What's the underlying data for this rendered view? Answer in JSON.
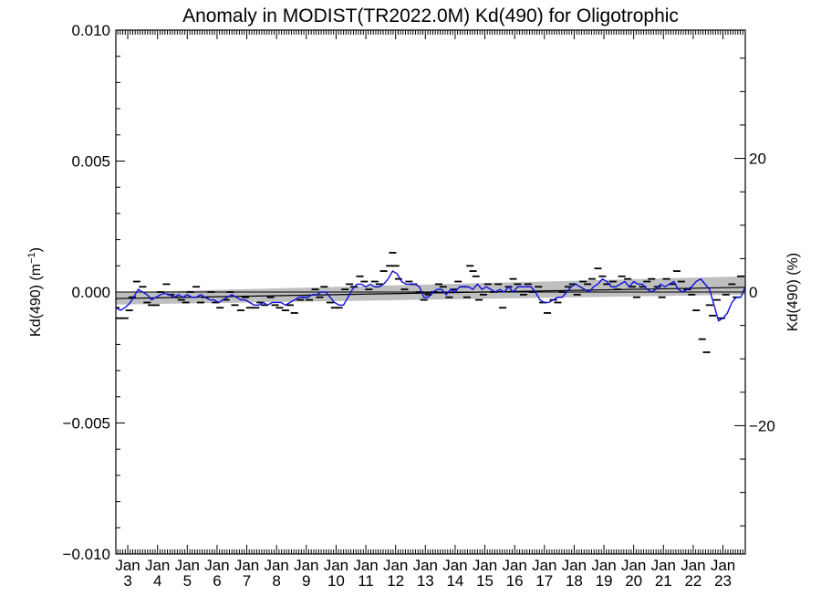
{
  "chart_data": {
    "type": "line",
    "title": "Anomaly in MODIST(TR2022.0M) Kd(490) for Oligotrophic",
    "ylabel_left": "Kd(490) (m",
    "ylabel_left_sup": "−1",
    "ylabel_left_close": ")",
    "ylabel_right": "Kd(490) (%)",
    "ylim": [
      -0.01,
      0.01
    ],
    "yticks_left": [
      {
        "value": 0.01,
        "label": "0.010"
      },
      {
        "value": 0.005,
        "label": "0.005"
      },
      {
        "value": 0.0,
        "label": "0.000"
      },
      {
        "value": -0.005,
        "label": "−0.005"
      },
      {
        "value": -0.01,
        "label": "−0.010"
      }
    ],
    "right_axis": {
      "ylim": [
        -39.2,
        39.2
      ],
      "ticks": [
        {
          "value": 20,
          "label": "20"
        },
        {
          "value": 0,
          "label": "0"
        },
        {
          "value": -20,
          "label": "−20"
        }
      ]
    },
    "xlim": [
      2002.6,
      2023.75
    ],
    "x_month_label": "Jan",
    "x_years": [
      {
        "value": 2003,
        "label": "3"
      },
      {
        "value": 2004,
        "label": "4"
      },
      {
        "value": 2005,
        "label": "5"
      },
      {
        "value": 2006,
        "label": "6"
      },
      {
        "value": 2007,
        "label": "7"
      },
      {
        "value": 2008,
        "label": "8"
      },
      {
        "value": 2009,
        "label": "9"
      },
      {
        "value": 2010,
        "label": "10"
      },
      {
        "value": 2011,
        "label": "11"
      },
      {
        "value": 2012,
        "label": "12"
      },
      {
        "value": 2013,
        "label": "13"
      },
      {
        "value": 2014,
        "label": "14"
      },
      {
        "value": 2015,
        "label": "15"
      },
      {
        "value": 2016,
        "label": "16"
      },
      {
        "value": 2017,
        "label": "17"
      },
      {
        "value": 2018,
        "label": "18"
      },
      {
        "value": 2019,
        "label": "19"
      },
      {
        "value": 2020,
        "label": "20"
      },
      {
        "value": 2021,
        "label": "21"
      },
      {
        "value": 2022,
        "label": "22"
      },
      {
        "value": 2023,
        "label": "23"
      }
    ],
    "trend": {
      "x": [
        2002.6,
        2023.75
      ],
      "y": [
        -0.00025,
        0.00018
      ]
    },
    "confidence_band": {
      "x": [
        2002.6,
        2023.75
      ],
      "lower": [
        -0.00048,
        -0.0001
      ],
      "upper": [
        -2e-05,
        0.0006
      ]
    },
    "zero_line": 0,
    "series": [
      {
        "type": "line",
        "color": "#1010e0",
        "x": [
          2002.6,
          2002.75,
          2002.9,
          2003.05,
          2003.2,
          2003.35,
          2003.5,
          2003.65,
          2003.8,
          2003.95,
          2004.1,
          2004.25,
          2004.4,
          2004.55,
          2004.7,
          2004.85,
          2005.0,
          2005.15,
          2005.3,
          2005.45,
          2005.6,
          2005.75,
          2005.9,
          2006.05,
          2006.2,
          2006.35,
          2006.5,
          2006.65,
          2006.8,
          2006.95,
          2007.1,
          2007.25,
          2007.4,
          2007.55,
          2007.7,
          2007.85,
          2008.0,
          2008.15,
          2008.3,
          2008.45,
          2008.6,
          2008.75,
          2008.9,
          2009.05,
          2009.2,
          2009.35,
          2009.5,
          2009.65,
          2009.8,
          2009.95,
          2010.1,
          2010.25,
          2010.4,
          2010.55,
          2010.7,
          2010.85,
          2011.0,
          2011.15,
          2011.3,
          2011.45,
          2011.6,
          2011.75,
          2011.9,
          2012.05,
          2012.2,
          2012.35,
          2012.5,
          2012.65,
          2012.8,
          2012.95,
          2013.1,
          2013.25,
          2013.4,
          2013.55,
          2013.7,
          2013.85,
          2014.0,
          2014.15,
          2014.3,
          2014.45,
          2014.6,
          2014.75,
          2014.9,
          2015.05,
          2015.2,
          2015.35,
          2015.5,
          2015.65,
          2015.8,
          2015.95,
          2016.1,
          2016.25,
          2016.4,
          2016.55,
          2016.7,
          2016.85,
          2017.0,
          2017.15,
          2017.3,
          2017.45,
          2017.6,
          2017.75,
          2017.9,
          2018.05,
          2018.2,
          2018.35,
          2018.5,
          2018.65,
          2018.8,
          2018.95,
          2019.1,
          2019.25,
          2019.4,
          2019.55,
          2019.7,
          2019.85,
          2020.0,
          2020.15,
          2020.3,
          2020.45,
          2020.6,
          2020.75,
          2020.9,
          2021.05,
          2021.2,
          2021.35,
          2021.5,
          2021.65,
          2021.8,
          2021.95,
          2022.1,
          2022.25,
          2022.4,
          2022.55,
          2022.7,
          2022.85,
          2023.0,
          2023.15,
          2023.3,
          2023.45,
          2023.6,
          2023.75
        ],
        "y": [
          -0.0006,
          -0.0007,
          -0.0006,
          -0.00045,
          -0.0002,
          0.0001,
          0.0,
          -0.0001,
          -0.0003,
          -0.0002,
          -0.0001,
          -5e-05,
          -0.0001,
          -0.0002,
          -0.0001,
          -0.0002,
          -0.0001,
          -0.0002,
          -0.0002,
          -0.0001,
          -0.0002,
          -0.0003,
          -0.0003,
          -0.0004,
          -0.0003,
          -0.0002,
          -0.0001,
          -0.0002,
          -0.0003,
          -0.0003,
          -0.0004,
          -0.0005,
          -0.0005,
          -0.0004,
          -0.0005,
          -0.0004,
          -0.0004,
          -0.0004,
          -0.0005,
          -0.0004,
          -0.0003,
          -0.0002,
          -0.0002,
          -0.0002,
          -0.0001,
          -0.0001,
          0.0,
          0.0,
          -0.0002,
          -0.0004,
          -0.0005,
          -0.0005,
          -0.0002,
          0.0001,
          0.0003,
          0.0003,
          0.0002,
          0.0003,
          0.0002,
          0.0002,
          0.0003,
          0.0005,
          0.0008,
          0.0007,
          0.0004,
          0.0003,
          0.0003,
          0.0003,
          0.0002,
          -0.0002,
          -0.0002,
          0.0,
          0.0001,
          0.0001,
          -0.0001,
          0.0001,
          0.0,
          0.0002,
          0.0002,
          0.0002,
          0.0001,
          0.0003,
          0.0001,
          0.0002,
          0.0001,
          0.0,
          0.0001,
          0.0,
          0.0002,
          0.0,
          0.0002,
          0.0002,
          0.0002,
          0.0002,
          0.0,
          -0.0003,
          -0.0004,
          -0.0004,
          -0.0003,
          -0.0002,
          -0.0002,
          0.0,
          0.0002,
          0.0003,
          0.0002,
          0.0001,
          0.0,
          0.0002,
          0.0003,
          0.0005,
          0.0004,
          0.0002,
          0.0002,
          0.0003,
          0.0004,
          0.0002,
          0.0004,
          0.0003,
          0.0003,
          0.0001,
          0.0,
          0.0001,
          0.0003,
          0.0002,
          0.0003,
          0.0004,
          0.0001,
          0.0,
          0.0001,
          0.0002,
          0.0004,
          0.0005,
          0.0003,
          0.0001,
          -0.0005,
          -0.0011,
          -0.001,
          -0.0008,
          -0.0004,
          -0.0002,
          -0.0002,
          0.0002
        ]
      },
      {
        "type": "scatter",
        "marker": "dash",
        "color": "#000000",
        "x": [
          2002.6,
          2002.7,
          2002.9,
          2003.05,
          2003.15,
          2003.3,
          2003.5,
          2003.65,
          2003.8,
          2003.95,
          2004.1,
          2004.3,
          2004.45,
          2004.6,
          2004.8,
          2004.95,
          2005.1,
          2005.3,
          2005.45,
          2005.6,
          2005.8,
          2005.95,
          2006.1,
          2006.3,
          2006.45,
          2006.6,
          2006.8,
          2006.95,
          2007.1,
          2007.3,
          2007.45,
          2007.6,
          2007.8,
          2007.95,
          2008.1,
          2008.3,
          2008.45,
          2008.6,
          2008.8,
          2008.95,
          2009.1,
          2009.3,
          2009.45,
          2009.6,
          2009.8,
          2009.95,
          2010.1,
          2010.3,
          2010.45,
          2010.6,
          2010.8,
          2010.95,
          2011.1,
          2011.3,
          2011.45,
          2011.6,
          2011.8,
          2011.9,
          2012.0,
          2012.1,
          2012.3,
          2012.45,
          2012.6,
          2012.8,
          2012.95,
          2013.1,
          2013.3,
          2013.45,
          2013.6,
          2013.8,
          2013.95,
          2014.1,
          2014.3,
          2014.4,
          2014.5,
          2014.6,
          2014.7,
          2014.8,
          2014.95,
          2015.1,
          2015.3,
          2015.45,
          2015.6,
          2015.8,
          2015.95,
          2016.1,
          2016.3,
          2016.45,
          2016.6,
          2016.8,
          2016.95,
          2017.1,
          2017.3,
          2017.45,
          2017.6,
          2017.8,
          2017.95,
          2018.1,
          2018.3,
          2018.45,
          2018.6,
          2018.8,
          2018.95,
          2019.1,
          2019.3,
          2019.45,
          2019.6,
          2019.8,
          2019.95,
          2020.1,
          2020.3,
          2020.45,
          2020.6,
          2020.8,
          2020.95,
          2021.1,
          2021.3,
          2021.45,
          2021.6,
          2021.8,
          2021.95,
          2022.1,
          2022.3,
          2022.45,
          2022.55,
          2022.65,
          2022.8,
          2022.95,
          2023.1,
          2023.3,
          2023.45,
          2023.6
        ],
        "y": [
          -0.0006,
          -0.001,
          -0.001,
          -0.0007,
          -0.0002,
          0.0004,
          0.0002,
          -0.0004,
          -0.0005,
          -0.0005,
          0.0,
          0.0003,
          -0.0001,
          -0.0002,
          -0.0003,
          -0.0004,
          0.0,
          0.0002,
          -0.0004,
          -0.0002,
          0.0,
          -0.0004,
          -0.0006,
          -0.0003,
          0.0,
          -0.0005,
          -0.0007,
          -0.0002,
          -0.0006,
          -0.0006,
          -0.0004,
          -0.0005,
          -0.0002,
          -0.0005,
          -0.0006,
          -0.0007,
          -0.0005,
          -0.0008,
          -0.0003,
          -0.0002,
          -0.0003,
          0.0001,
          -0.0002,
          0.0002,
          -0.0004,
          -0.0006,
          -0.0006,
          0.0001,
          0.0003,
          0.0002,
          0.0006,
          0.0004,
          0.0001,
          0.0004,
          0.0003,
          0.0008,
          0.001,
          0.0015,
          0.001,
          0.0005,
          0.0001,
          0.0004,
          0.0003,
          0.0,
          -0.0003,
          -0.0001,
          0.0,
          0.0003,
          0.0002,
          -0.0002,
          0.0001,
          0.0004,
          0.0002,
          -0.0002,
          0.001,
          0.0008,
          0.0006,
          -0.0003,
          -0.0001,
          0.0003,
          0.0,
          0.0003,
          -0.0006,
          0.0002,
          0.0005,
          0.0003,
          -0.0001,
          0.0003,
          0.0,
          0.0002,
          -0.0004,
          -0.0008,
          -0.0003,
          -0.0004,
          0.0,
          0.0002,
          0.0003,
          -0.0001,
          0.0004,
          0.0003,
          0.0005,
          0.0009,
          0.0006,
          0.0003,
          0.0004,
          0.0001,
          0.0006,
          0.0005,
          0.0002,
          -0.0002,
          0.0002,
          0.0004,
          0.0005,
          0.0002,
          -0.0002,
          0.0005,
          0.0003,
          0.0008,
          0.0004,
          0.0001,
          -0.0001,
          -0.0007,
          -0.0018,
          -0.0023,
          -0.0005,
          -0.0009,
          -0.0003,
          -0.001,
          -0.0001,
          0.0003,
          -0.0002,
          0.0006
        ]
      }
    ]
  }
}
